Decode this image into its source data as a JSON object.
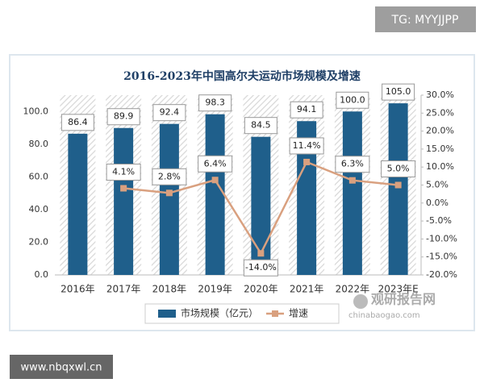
{
  "chart_data": {
    "type": "bar",
    "title": "2016-2023年中国高尔夫运动市场规模及增速",
    "categories": [
      "2016年",
      "2017年",
      "2018年",
      "2019年",
      "2020年",
      "2021年",
      "2022年",
      "2023年E"
    ],
    "series": [
      {
        "name": "市场规模（亿元）",
        "type": "bar",
        "color": "#1f5f8b",
        "values": [
          86.4,
          89.9,
          92.4,
          98.3,
          84.5,
          94.1,
          100.0,
          105.0
        ],
        "value_labels": [
          "86.4",
          "89.9",
          "92.4",
          "98.3",
          "84.5",
          "94.1",
          "100.0",
          "105.0"
        ]
      },
      {
        "name": "增速",
        "type": "line",
        "axis": "y2",
        "color": "#d9a07f",
        "values": [
          null,
          4.1,
          2.8,
          6.4,
          -14.0,
          11.4,
          6.3,
          5.0
        ],
        "value_labels": [
          null,
          "4.1%",
          "2.8%",
          "6.4%",
          "-14.0%",
          "11.4%",
          "6.3%",
          "5.0%"
        ]
      }
    ],
    "ylim": [
      0,
      110
    ],
    "yticks": [
      {
        "value": 0,
        "label": "0.0"
      },
      {
        "value": 20,
        "label": "20.0"
      },
      {
        "value": 40,
        "label": "40.0"
      },
      {
        "value": 60,
        "label": "60.0"
      },
      {
        "value": 80,
        "label": "80.0"
      },
      {
        "value": 100,
        "label": "100.0"
      }
    ],
    "y2lim": [
      -20,
      30
    ],
    "y2ticks": [
      {
        "value": -20,
        "label": "-20.0%"
      },
      {
        "value": -15,
        "label": "-15.0%"
      },
      {
        "value": -10,
        "label": "-10.0%"
      },
      {
        "value": -5,
        "label": "-5.0%"
      },
      {
        "value": 0,
        "label": "0.0%"
      },
      {
        "value": 5,
        "label": "5.0%"
      },
      {
        "value": 10,
        "label": "10.0%"
      },
      {
        "value": 15,
        "label": "15.0%"
      },
      {
        "value": 20,
        "label": "20.0%"
      },
      {
        "value": 25,
        "label": "25.0%"
      },
      {
        "value": 30,
        "label": "30.0%"
      }
    ],
    "legend": "bottom"
  },
  "watermarks": {
    "top_right": "TG: MYYJJPP",
    "bottom_left": "www.nbqxwl.cn",
    "logo": "观研报告网",
    "logo_url": "chinabaogao.com"
  }
}
